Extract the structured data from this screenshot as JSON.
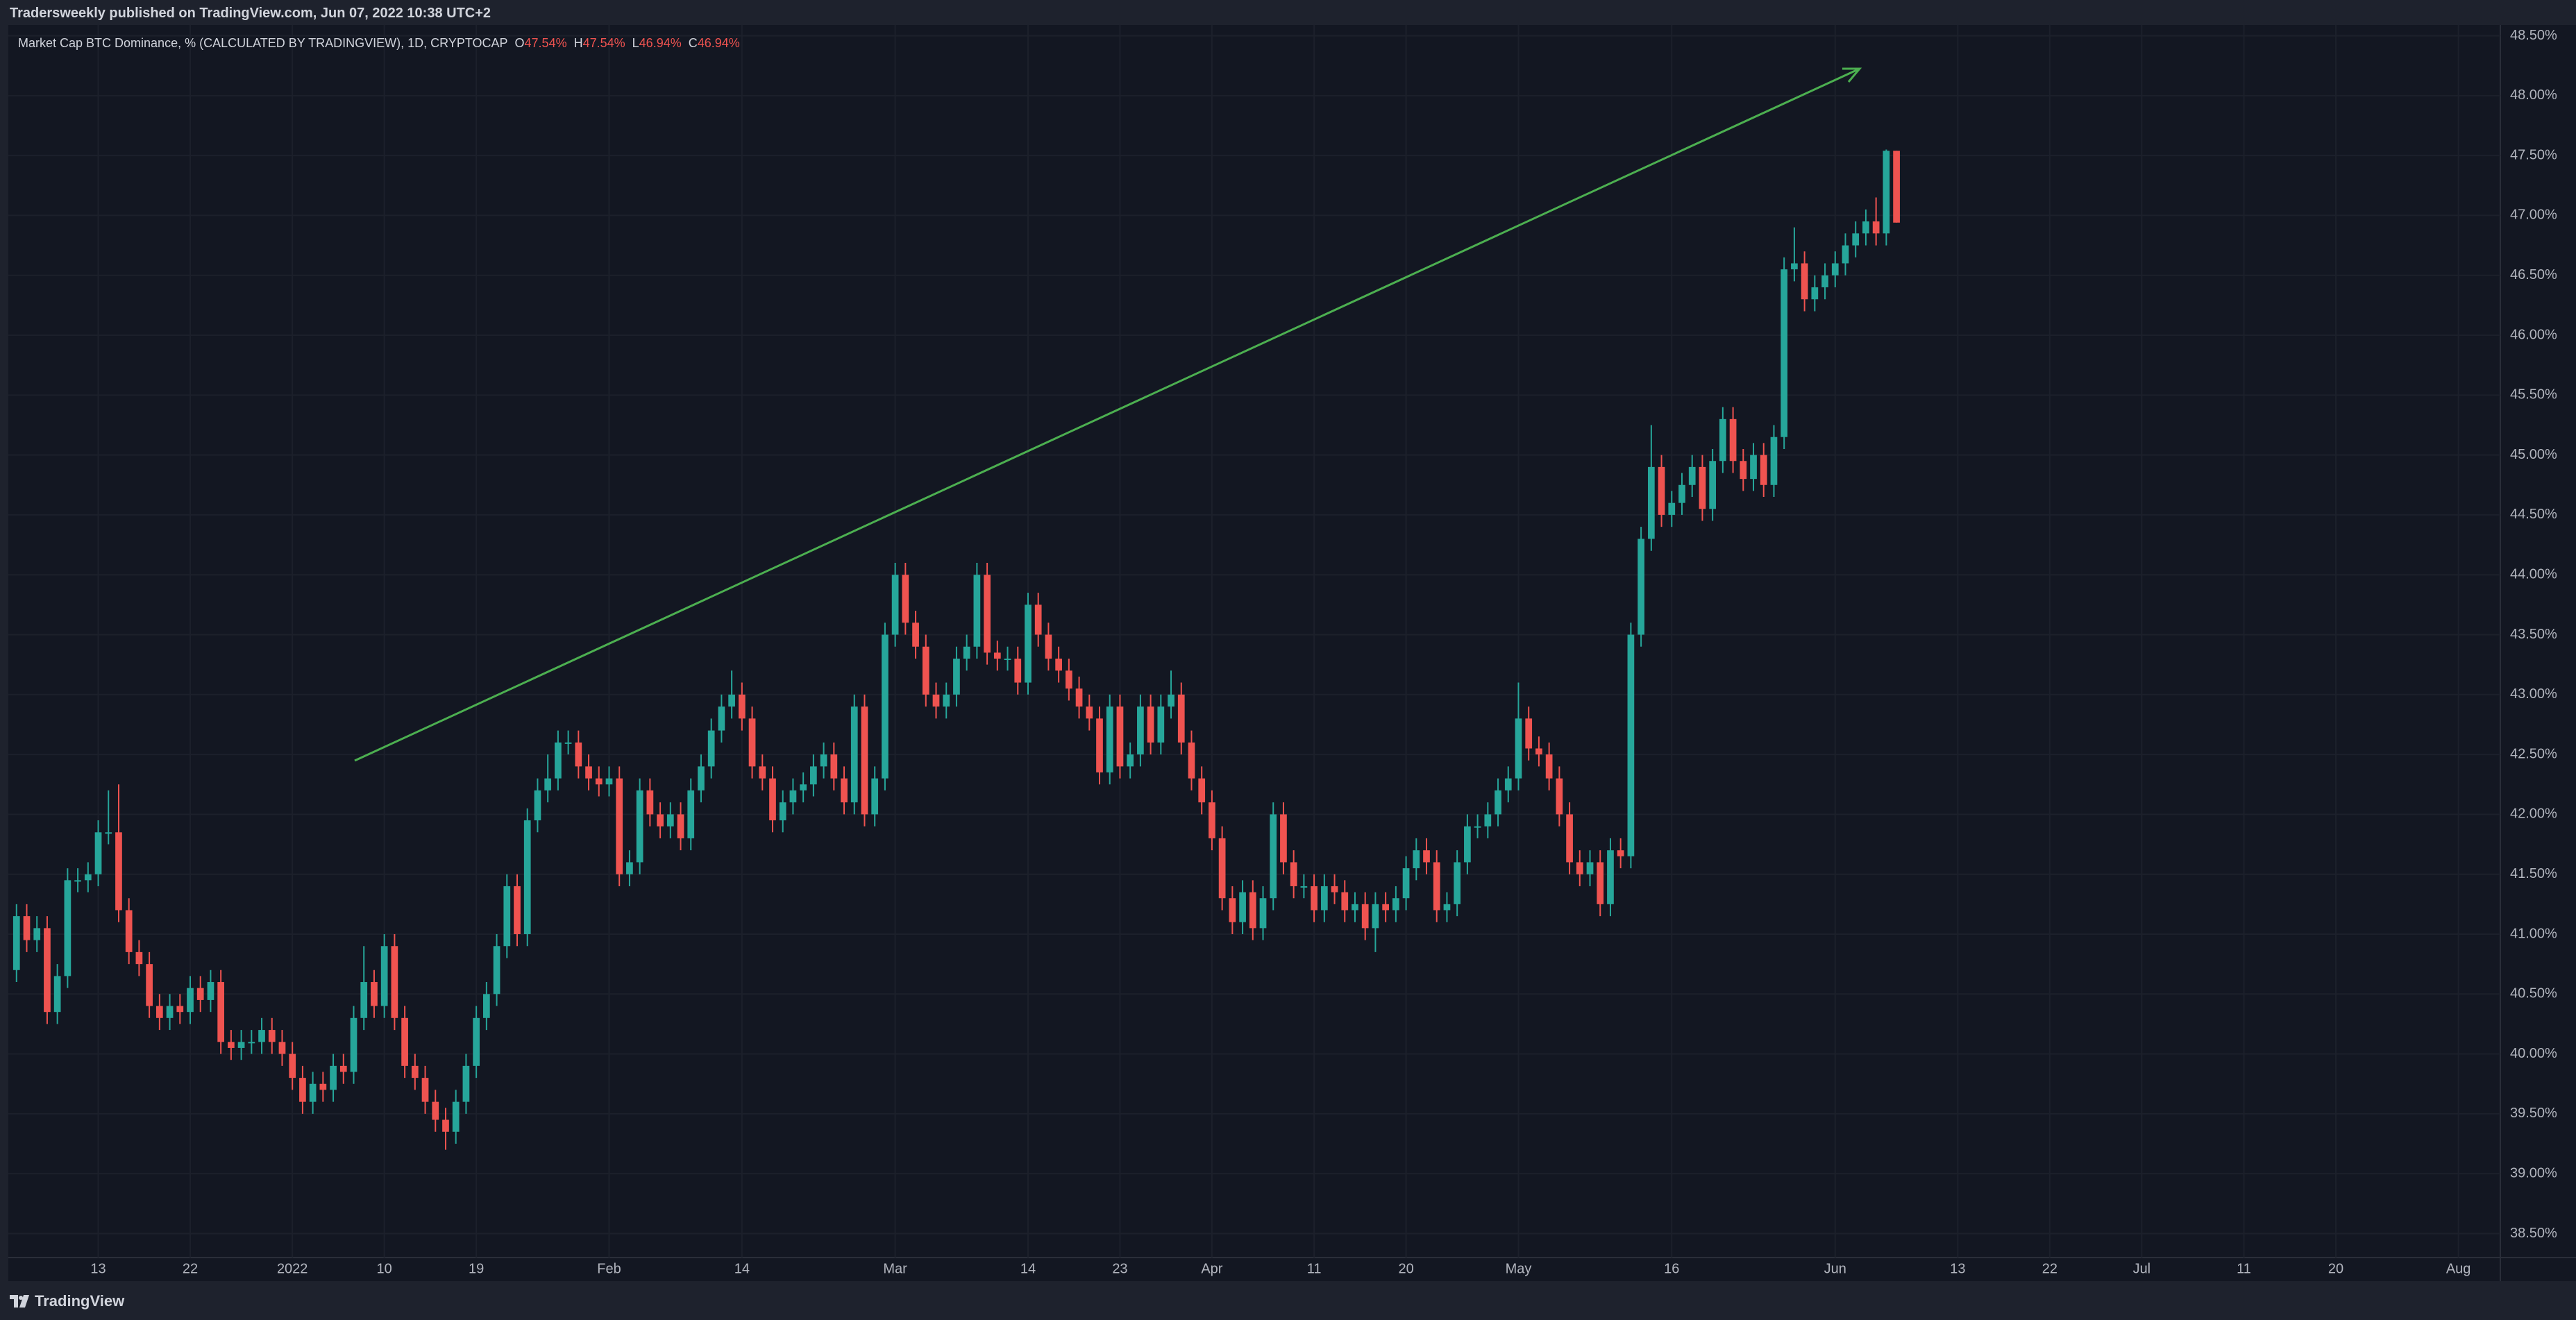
{
  "header": {
    "published": "Tradersweekly published on TradingView.com, Jun 07, 2022 10:38 UTC+2",
    "footer": "TradingView"
  },
  "chart_data": {
    "type": "candlestick",
    "title": "Market Cap BTC Dominance, % (CALCULATED BY TRADINGVIEW), 1D, CRYPTOCAP",
    "legend_keys": [
      "O",
      "H",
      "L",
      "C"
    ],
    "legend_value_labels": [
      "47.54%",
      "47.54%",
      "46.94%",
      "46.94%"
    ],
    "up_color": "#26a69a",
    "down_color": "#ef5350",
    "grid": true,
    "xlim": [
      -0.8,
      243.1
    ],
    "xticks": [
      {
        "value": 8,
        "label": "13"
      },
      {
        "value": 17,
        "label": "22"
      },
      {
        "value": 27,
        "label": "2022"
      },
      {
        "value": 36,
        "label": "10"
      },
      {
        "value": 45,
        "label": "19"
      },
      {
        "value": 58,
        "label": "Feb"
      },
      {
        "value": 71,
        "label": "14"
      },
      {
        "value": 86,
        "label": "Mar"
      },
      {
        "value": 99,
        "label": "14"
      },
      {
        "value": 108,
        "label": "23"
      },
      {
        "value": 117,
        "label": "Apr"
      },
      {
        "value": 127,
        "label": "11"
      },
      {
        "value": 136,
        "label": "20"
      },
      {
        "value": 147,
        "label": "May"
      },
      {
        "value": 162,
        "label": "16"
      },
      {
        "value": 178,
        "label": "Jun"
      },
      {
        "value": 190,
        "label": "13"
      },
      {
        "value": 199,
        "label": "22"
      },
      {
        "value": 208,
        "label": "Jul"
      },
      {
        "value": 218,
        "label": "11"
      },
      {
        "value": 227,
        "label": "20"
      },
      {
        "value": 239,
        "label": "Aug"
      }
    ],
    "ylim": [
      38.3,
      48.59
    ],
    "yticks": [
      {
        "value": 38.5,
        "label": "38.50%"
      },
      {
        "value": 39,
        "label": "39.00%"
      },
      {
        "value": 39.5,
        "label": "39.50%"
      },
      {
        "value": 40,
        "label": "40.00%"
      },
      {
        "value": 40.5,
        "label": "40.50%"
      },
      {
        "value": 41,
        "label": "41.00%"
      },
      {
        "value": 41.5,
        "label": "41.50%"
      },
      {
        "value": 42,
        "label": "42.00%"
      },
      {
        "value": 42.5,
        "label": "42.50%"
      },
      {
        "value": 43,
        "label": "43.00%"
      },
      {
        "value": 43.5,
        "label": "43.50%"
      },
      {
        "value": 44,
        "label": "44.00%"
      },
      {
        "value": 44.5,
        "label": "44.50%"
      },
      {
        "value": 45,
        "label": "45.00%"
      },
      {
        "value": 45.5,
        "label": "45.50%"
      },
      {
        "value": 46,
        "label": "46.00%"
      },
      {
        "value": 46.5,
        "label": "46.50%"
      },
      {
        "value": 47,
        "label": "47.00%"
      },
      {
        "value": 47.5,
        "label": "47.50%"
      },
      {
        "value": 48,
        "label": "48.00%"
      },
      {
        "value": 48.5,
        "label": "48.50%"
      }
    ],
    "x": [
      0,
      1,
      2,
      3,
      4,
      5,
      6,
      7,
      8,
      9,
      10,
      11,
      12,
      13,
      14,
      15,
      16,
      17,
      18,
      19,
      20,
      21,
      22,
      23,
      24,
      25,
      26,
      27,
      28,
      29,
      30,
      31,
      32,
      33,
      34,
      35,
      36,
      37,
      38,
      39,
      40,
      41,
      42,
      43,
      44,
      45,
      46,
      47,
      48,
      49,
      50,
      51,
      52,
      53,
      54,
      55,
      56,
      57,
      58,
      59,
      60,
      61,
      62,
      63,
      64,
      65,
      66,
      67,
      68,
      69,
      70,
      71,
      72,
      73,
      74,
      75,
      76,
      77,
      78,
      79,
      80,
      81,
      82,
      83,
      84,
      85,
      86,
      87,
      88,
      89,
      90,
      91,
      92,
      93,
      94,
      95,
      96,
      97,
      98,
      99,
      100,
      101,
      102,
      103,
      104,
      105,
      106,
      107,
      108,
      109,
      110,
      111,
      112,
      113,
      114,
      115,
      116,
      117,
      118,
      119,
      120,
      121,
      122,
      123,
      124,
      125,
      126,
      127,
      128,
      129,
      130,
      131,
      132,
      133,
      134,
      135,
      136,
      137,
      138,
      139,
      140,
      141,
      142,
      143,
      144,
      145,
      146,
      147,
      148,
      149,
      150,
      151,
      152,
      153,
      154,
      155,
      156,
      157,
      158,
      159,
      160,
      161,
      162,
      163,
      164,
      165,
      166,
      167,
      168,
      169,
      170,
      171,
      172,
      173,
      174,
      175,
      176,
      177,
      178,
      179,
      180,
      181,
      182,
      183,
      184
    ],
    "open": [
      40.7,
      41.15,
      40.95,
      41.05,
      40.35,
      40.65,
      41.45,
      41.45,
      41.5,
      41.85,
      41.85,
      41.2,
      40.85,
      40.75,
      40.4,
      40.3,
      40.4,
      40.35,
      40.55,
      40.45,
      40.6,
      40.1,
      40.05,
      40.1,
      40.1,
      40.2,
      40.1,
      40.0,
      39.8,
      39.6,
      39.75,
      39.7,
      39.9,
      39.85,
      40.3,
      40.6,
      40.4,
      40.9,
      40.3,
      39.9,
      39.8,
      39.6,
      39.45,
      39.35,
      39.6,
      39.9,
      40.3,
      40.5,
      40.9,
      41.4,
      41.0,
      41.95,
      42.2,
      42.3,
      42.6,
      42.6,
      42.4,
      42.3,
      42.25,
      42.3,
      41.5,
      41.6,
      42.2,
      42.0,
      41.9,
      42.0,
      41.8,
      42.2,
      42.4,
      42.7,
      42.9,
      43.0,
      42.8,
      42.4,
      42.3,
      41.95,
      42.1,
      42.2,
      42.25,
      42.4,
      42.5,
      42.3,
      42.1,
      42.9,
      42.0,
      42.3,
      43.5,
      44.0,
      43.6,
      43.4,
      43.0,
      42.9,
      43.0,
      43.3,
      43.4,
      44.0,
      43.35,
      43.3,
      43.3,
      43.1,
      43.75,
      43.5,
      43.3,
      43.2,
      43.05,
      42.9,
      42.8,
      42.35,
      42.9,
      42.4,
      42.5,
      42.9,
      42.6,
      42.9,
      43.0,
      42.6,
      42.3,
      42.1,
      41.8,
      41.3,
      41.1,
      41.35,
      41.05,
      41.3,
      42.0,
      41.6,
      41.4,
      41.4,
      41.2,
      41.4,
      41.35,
      41.2,
      41.25,
      41.05,
      41.25,
      41.2,
      41.3,
      41.55,
      41.7,
      41.6,
      41.2,
      41.25,
      41.6,
      41.9,
      41.9,
      42.0,
      42.2,
      42.3,
      42.8,
      42.55,
      42.5,
      42.3,
      42.0,
      41.6,
      41.5,
      41.6,
      41.25,
      41.7,
      41.65,
      43.5,
      44.3,
      44.9,
      44.5,
      44.6,
      44.75,
      44.9,
      44.55,
      44.95,
      45.3,
      44.95,
      44.8,
      45.0,
      44.75,
      45.15,
      46.55,
      46.6,
      46.3,
      46.4,
      46.5,
      46.6,
      46.75,
      46.85,
      46.95,
      46.85,
      47.54
    ],
    "high": [
      41.25,
      41.25,
      41.15,
      41.15,
      40.75,
      41.55,
      41.55,
      41.6,
      41.95,
      42.2,
      42.25,
      41.3,
      40.95,
      40.85,
      40.5,
      40.5,
      40.5,
      40.65,
      40.65,
      40.7,
      40.7,
      40.2,
      40.2,
      40.2,
      40.3,
      40.3,
      40.2,
      40.1,
      39.9,
      39.85,
      39.85,
      40.0,
      40.0,
      40.4,
      40.9,
      40.7,
      41.0,
      41.0,
      40.4,
      40.0,
      39.9,
      39.7,
      39.55,
      39.7,
      40.0,
      40.4,
      40.6,
      41.0,
      41.5,
      41.5,
      42.05,
      42.3,
      42.5,
      42.7,
      42.7,
      42.7,
      42.5,
      42.4,
      42.4,
      42.4,
      41.7,
      42.3,
      42.3,
      42.1,
      42.1,
      42.1,
      42.3,
      42.5,
      42.8,
      43.0,
      43.2,
      43.1,
      42.9,
      42.5,
      42.4,
      42.2,
      42.3,
      42.35,
      42.5,
      42.6,
      42.6,
      42.4,
      43.0,
      43.0,
      42.4,
      43.6,
      44.1,
      44.1,
      43.7,
      43.5,
      43.1,
      43.1,
      43.4,
      43.5,
      44.1,
      44.1,
      43.45,
      43.4,
      43.4,
      43.85,
      43.85,
      43.6,
      43.4,
      43.3,
      43.15,
      43.0,
      42.9,
      43.0,
      43.0,
      42.6,
      43.0,
      43.0,
      43.0,
      43.2,
      43.1,
      42.7,
      42.4,
      42.2,
      41.9,
      41.4,
      41.45,
      41.45,
      41.4,
      42.1,
      42.1,
      41.7,
      41.5,
      41.5,
      41.5,
      41.5,
      41.45,
      41.35,
      41.35,
      41.35,
      41.35,
      41.4,
      41.65,
      41.8,
      41.8,
      41.7,
      41.35,
      41.7,
      42.0,
      42.0,
      42.1,
      42.3,
      42.4,
      43.1,
      42.9,
      42.65,
      42.6,
      42.4,
      42.1,
      41.7,
      41.7,
      41.7,
      41.8,
      41.8,
      43.6,
      44.4,
      45.25,
      45.0,
      44.7,
      44.85,
      45.0,
      45.0,
      45.05,
      45.4,
      45.4,
      45.05,
      45.1,
      45.1,
      45.25,
      46.65,
      46.9,
      46.7,
      46.5,
      46.6,
      46.7,
      46.85,
      46.95,
      47.05,
      47.15,
      47.55,
      47.54
    ],
    "low": [
      40.6,
      40.85,
      40.85,
      40.25,
      40.25,
      40.55,
      41.35,
      41.35,
      41.4,
      41.75,
      41.1,
      40.75,
      40.65,
      40.3,
      40.2,
      40.2,
      40.25,
      40.25,
      40.35,
      40.35,
      40.0,
      39.95,
      39.95,
      40.0,
      40.0,
      40.0,
      39.9,
      39.7,
      39.5,
      39.5,
      39.6,
      39.6,
      39.75,
      39.75,
      40.2,
      40.3,
      40.3,
      40.2,
      39.8,
      39.7,
      39.5,
      39.35,
      39.2,
      39.25,
      39.5,
      39.8,
      40.2,
      40.4,
      40.8,
      40.9,
      40.9,
      41.85,
      42.1,
      42.2,
      42.5,
      42.3,
      42.2,
      42.15,
      42.15,
      41.4,
      41.4,
      41.5,
      41.9,
      41.8,
      41.8,
      41.7,
      41.7,
      42.1,
      42.3,
      42.6,
      42.8,
      42.7,
      42.3,
      42.2,
      41.85,
      41.85,
      42.0,
      42.1,
      42.15,
      42.3,
      42.2,
      42.0,
      42.0,
      41.9,
      41.9,
      42.2,
      43.4,
      43.5,
      43.3,
      42.9,
      42.8,
      42.8,
      42.9,
      43.2,
      43.3,
      43.25,
      43.2,
      43.2,
      43.0,
      43.0,
      43.4,
      43.2,
      43.1,
      42.95,
      42.8,
      42.7,
      42.25,
      42.25,
      42.3,
      42.3,
      42.4,
      42.5,
      42.5,
      42.8,
      42.5,
      42.2,
      42.0,
      41.7,
      41.2,
      41.0,
      41.0,
      40.95,
      40.95,
      41.2,
      41.5,
      41.3,
      41.3,
      41.1,
      41.1,
      41.25,
      41.1,
      41.1,
      40.95,
      40.85,
      41.1,
      41.1,
      41.2,
      41.45,
      41.5,
      41.1,
      41.1,
      41.15,
      41.5,
      41.8,
      41.8,
      41.9,
      42.1,
      42.2,
      42.45,
      42.4,
      42.2,
      41.9,
      41.5,
      41.4,
      41.4,
      41.15,
      41.15,
      41.55,
      41.55,
      43.4,
      44.2,
      44.4,
      44.4,
      44.5,
      44.65,
      44.45,
      44.45,
      44.85,
      44.85,
      44.7,
      44.7,
      44.65,
      44.65,
      45.05,
      46.45,
      46.2,
      46.2,
      46.3,
      46.4,
      46.5,
      46.65,
      46.75,
      46.75,
      46.75,
      46.94
    ],
    "close": [
      41.15,
      40.95,
      41.05,
      40.35,
      40.65,
      41.45,
      41.45,
      41.5,
      41.85,
      41.85,
      41.2,
      40.85,
      40.75,
      40.4,
      40.3,
      40.4,
      40.35,
      40.55,
      40.45,
      40.6,
      40.1,
      40.05,
      40.1,
      40.1,
      40.2,
      40.1,
      40.0,
      39.8,
      39.6,
      39.75,
      39.7,
      39.9,
      39.85,
      40.3,
      40.6,
      40.4,
      40.9,
      40.3,
      39.9,
      39.8,
      39.6,
      39.45,
      39.35,
      39.6,
      39.9,
      40.3,
      40.5,
      40.9,
      41.4,
      41.0,
      41.95,
      42.2,
      42.3,
      42.6,
      42.6,
      42.4,
      42.3,
      42.25,
      42.3,
      41.5,
      41.6,
      42.2,
      42.0,
      41.9,
      42.0,
      41.8,
      42.2,
      42.4,
      42.7,
      42.9,
      43.0,
      42.8,
      42.4,
      42.3,
      41.95,
      42.1,
      42.2,
      42.25,
      42.4,
      42.5,
      42.3,
      42.1,
      42.9,
      42.0,
      42.3,
      43.5,
      44.0,
      43.6,
      43.4,
      43.0,
      42.9,
      43.0,
      43.3,
      43.4,
      44.0,
      43.35,
      43.3,
      43.3,
      43.1,
      43.75,
      43.5,
      43.3,
      43.2,
      43.05,
      42.9,
      42.8,
      42.35,
      42.9,
      42.4,
      42.5,
      42.9,
      42.6,
      42.9,
      43.0,
      42.6,
      42.3,
      42.1,
      41.8,
      41.3,
      41.1,
      41.35,
      41.05,
      41.3,
      42.0,
      41.6,
      41.4,
      41.4,
      41.2,
      41.4,
      41.35,
      41.2,
      41.25,
      41.05,
      41.25,
      41.2,
      41.3,
      41.55,
      41.7,
      41.6,
      41.2,
      41.25,
      41.6,
      41.9,
      41.9,
      42.0,
      42.2,
      42.3,
      42.8,
      42.55,
      42.5,
      42.3,
      42.0,
      41.6,
      41.5,
      41.6,
      41.25,
      41.7,
      41.65,
      43.5,
      44.3,
      44.9,
      44.5,
      44.6,
      44.75,
      44.9,
      44.55,
      44.95,
      45.3,
      44.95,
      44.8,
      45.0,
      44.75,
      45.15,
      46.55,
      46.6,
      46.3,
      46.4,
      46.5,
      46.6,
      46.75,
      46.85,
      46.95,
      46.85,
      47.54,
      46.94
    ]
  }
}
